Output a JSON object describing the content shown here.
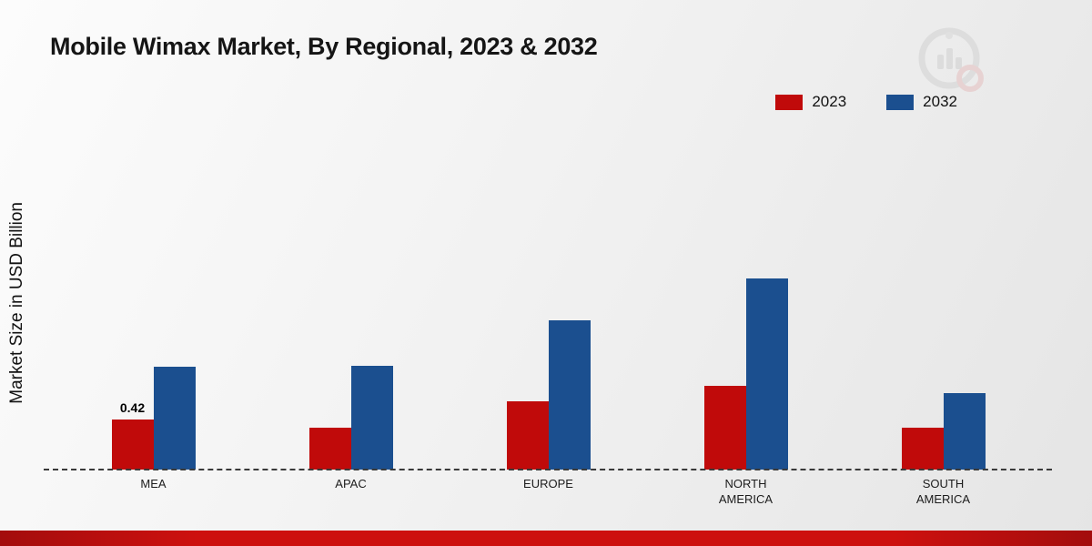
{
  "page": {
    "title": "Mobile Wimax Market, By Regional, 2023 & 2032",
    "ylabel": "Market Size in USD Billion"
  },
  "colors": {
    "series_2023": "#c00a0a",
    "series_2032": "#1b4f8f",
    "footer_bar": "#cd100e"
  },
  "chart_data": {
    "type": "bar",
    "title": "Mobile Wimax Market, By Regional, 2023 & 2032",
    "xlabel": "",
    "ylabel": "Market Size in USD Billion",
    "categories": [
      "MEA",
      "APAC",
      "EUROPE",
      "NORTH AMERICA",
      "SOUTH AMERICA"
    ],
    "series": [
      {
        "name": "2023",
        "color": "#c00a0a",
        "values": [
          0.42,
          0.35,
          0.57,
          0.7,
          0.35
        ]
      },
      {
        "name": "2032",
        "color": "#1b4f8f",
        "values": [
          0.86,
          0.87,
          1.25,
          1.6,
          0.64
        ]
      }
    ],
    "ylim": [
      0,
      2.8
    ],
    "grid": false,
    "axis_line": "dashed-baseline",
    "legend_position": "top-right",
    "annotations": [
      {
        "category": "MEA",
        "series": "2023",
        "text": "0.42"
      }
    ]
  }
}
